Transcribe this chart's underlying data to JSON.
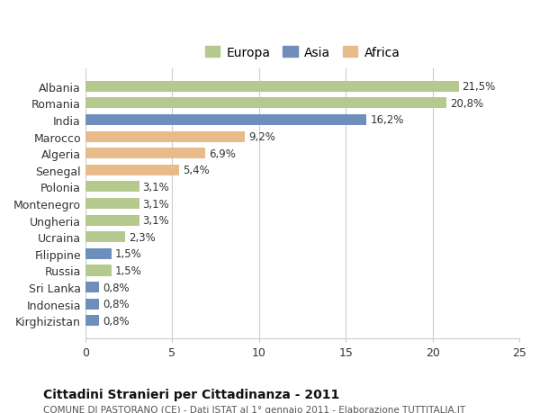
{
  "categories": [
    "Albania",
    "Romania",
    "India",
    "Marocco",
    "Algeria",
    "Senegal",
    "Polonia",
    "Montenegro",
    "Ungheria",
    "Ucraina",
    "Filippine",
    "Russia",
    "Sri Lanka",
    "Indonesia",
    "Kirghizistan"
  ],
  "values": [
    21.5,
    20.8,
    16.2,
    9.2,
    6.9,
    5.4,
    3.1,
    3.1,
    3.1,
    2.3,
    1.5,
    1.5,
    0.8,
    0.8,
    0.8
  ],
  "labels": [
    "21,5%",
    "20,8%",
    "16,2%",
    "9,2%",
    "6,9%",
    "5,4%",
    "3,1%",
    "3,1%",
    "3,1%",
    "2,3%",
    "1,5%",
    "1,5%",
    "0,8%",
    "0,8%",
    "0,8%"
  ],
  "continents": [
    "Europa",
    "Europa",
    "Asia",
    "Africa",
    "Africa",
    "Africa",
    "Europa",
    "Europa",
    "Europa",
    "Europa",
    "Asia",
    "Europa",
    "Asia",
    "Asia",
    "Asia"
  ],
  "colors": {
    "Europa": "#b5c98e",
    "Asia": "#6e8fbc",
    "Africa": "#e8bc8a"
  },
  "legend_order": [
    "Europa",
    "Asia",
    "Africa"
  ],
  "title": "Cittadini Stranieri per Cittadinanza - 2011",
  "subtitle": "COMUNE DI PASTORANO (CE) - Dati ISTAT al 1° gennaio 2011 - Elaborazione TUTTITALIA.IT",
  "xlim": [
    0,
    25
  ],
  "xticks": [
    0,
    5,
    10,
    15,
    20,
    25
  ],
  "background_color": "#ffffff",
  "grid_color": "#cccccc"
}
